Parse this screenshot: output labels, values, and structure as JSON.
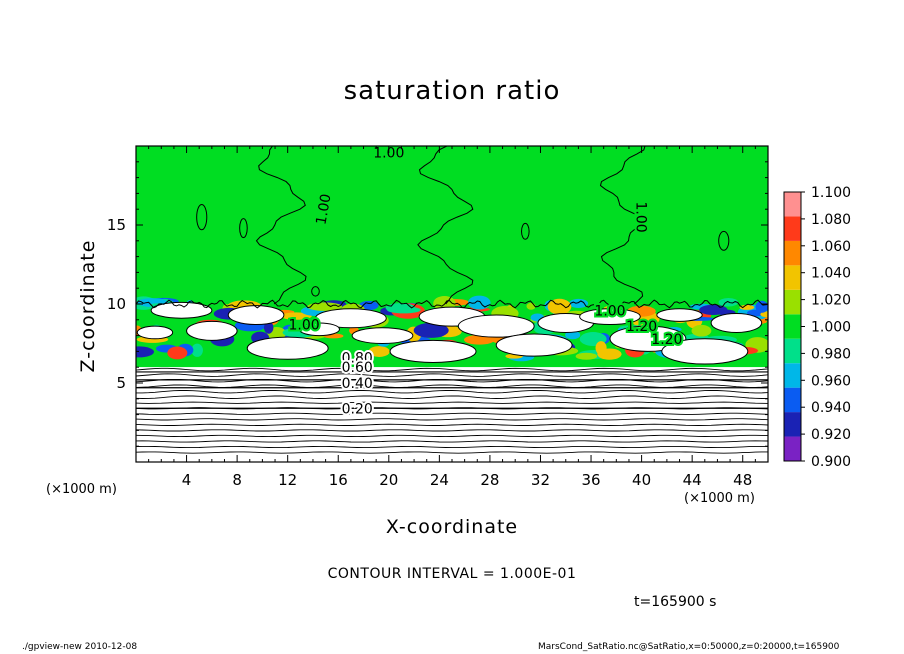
{
  "chart_data": {
    "type": "heatmap",
    "title": "saturation ratio",
    "xlabel": "X-coordinate",
    "ylabel": "Z-coordinate",
    "x_unit_label": "(×1000 m)",
    "y_unit_label": "(×1000 m)",
    "xlim": [
      0,
      50
    ],
    "ylim": [
      0,
      20
    ],
    "x_ticks": [
      "4",
      "8",
      "12",
      "16",
      "20",
      "24",
      "28",
      "32",
      "36",
      "40",
      "44",
      "48"
    ],
    "y_ticks": [
      "5",
      "10",
      "15"
    ],
    "colorbar": {
      "levels": [
        "0.900",
        "0.920",
        "0.940",
        "0.960",
        "0.980",
        "1.000",
        "1.020",
        "1.040",
        "1.060",
        "1.080",
        "1.100"
      ],
      "colors": [
        "#7a22c4",
        "#1a22b4",
        "#0a5cf2",
        "#00b7e8",
        "#00e08a",
        "#00dd22",
        "#9ae000",
        "#f2c400",
        "#ff8800",
        "#ff3a1a",
        "#ff9090"
      ]
    },
    "contour_labels": [
      "1.00",
      "1.00",
      "1.00",
      "1.00",
      "1.00",
      "1.20",
      "1.20",
      "0.80",
      "0.60",
      "0.40",
      "0.20"
    ],
    "field_regions": {
      "saturated_layer_z": [
        10,
        20
      ],
      "cloud_layer_z": [
        6,
        10
      ],
      "subsaturated_layer_z": [
        0,
        6
      ]
    },
    "lower_contours": [
      {
        "value": "0.20",
        "z": 3.4
      },
      {
        "value": "0.40",
        "z": 4.7
      },
      {
        "value": "0.60",
        "z": 5.2
      },
      {
        "value": "0.80",
        "z": 5.7
      }
    ],
    "contour_interval_text": "CONTOUR INTERVAL = 1.000E-01",
    "time_text": "t=165900 s"
  },
  "footer": {
    "left": "./gpview-new   2010-12-08",
    "right": "MarsCond_SatRatio.nc@SatRatio,x=0:50000,z=0:20000,t=165900"
  }
}
